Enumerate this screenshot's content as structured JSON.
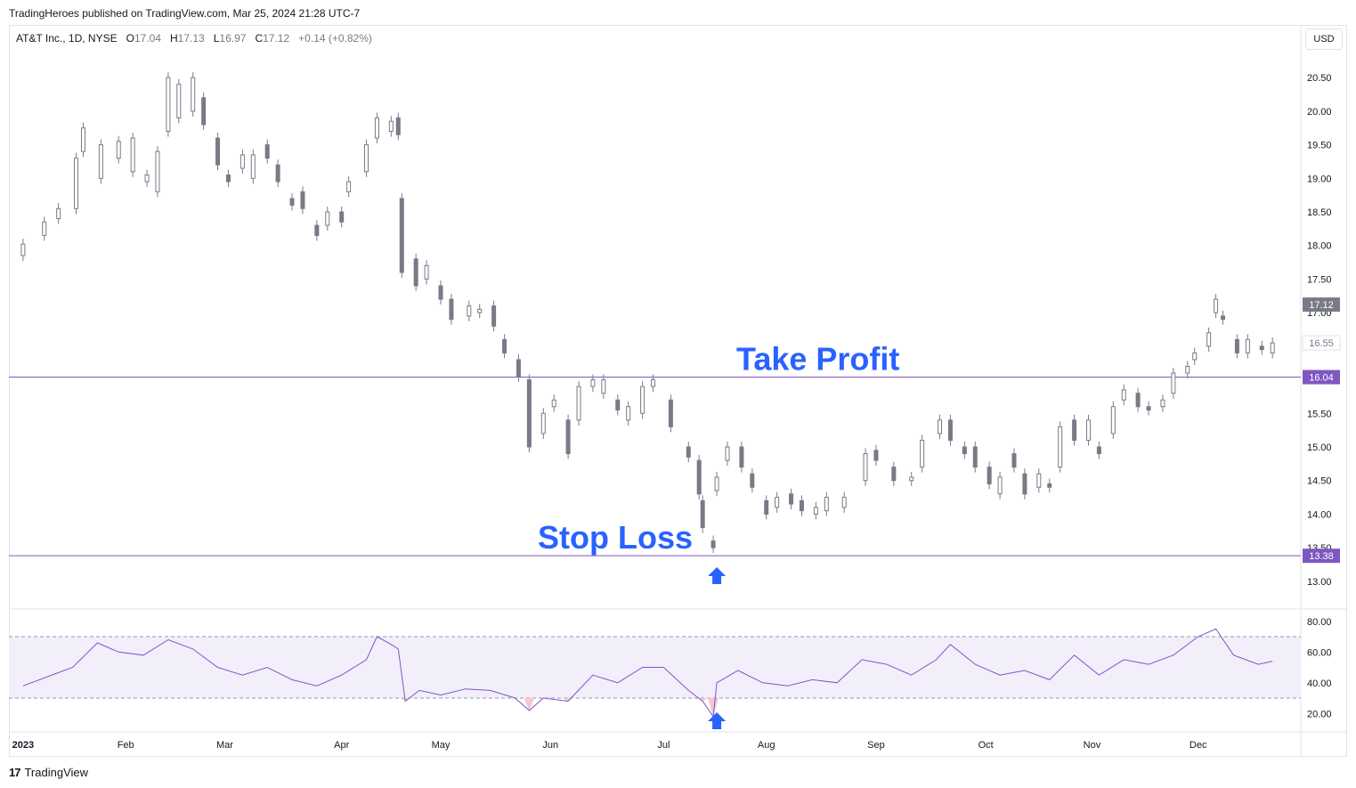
{
  "header": {
    "published": "TradingHeroes published on TradingView.com, Mar 25, 2024 21:28 UTC-7"
  },
  "legend": {
    "symbol": "AT&T Inc., 1D, NYSE",
    "o_label": "O",
    "o_value": "17.04",
    "h_label": "H",
    "h_value": "17.13",
    "l_label": "L",
    "l_value": "16.97",
    "c_label": "C",
    "c_value": "17.12",
    "change": "+0.14 (+0.82%)"
  },
  "currency_button": "USD",
  "footer": {
    "brand_mark": "17",
    "brand": "TradingView"
  },
  "colors": {
    "candle": "#787b86",
    "level_line": "#7e57c2",
    "annotation_text": "#2962ff",
    "arrow": "#2962ff",
    "rsi_line": "#7e57c2",
    "rsi_band": "#f2effb",
    "rsi_oversold_fill": "#f7c6d3",
    "price_label_bg": "#7e57c2",
    "last_price_bg": "#787b86"
  },
  "chart_data": [
    {
      "type": "candlestick",
      "title": "AT&T Inc., 1D, NYSE",
      "ylim": [
        12.6,
        20.9
      ],
      "yticks": [
        "20.50",
        "20.00",
        "19.50",
        "19.00",
        "18.50",
        "18.00",
        "17.50",
        "17.00",
        "16.50",
        "15.50",
        "15.00",
        "14.50",
        "14.00",
        "13.50",
        "13.00"
      ],
      "xticks": [
        "2023",
        "Feb",
        "Mar",
        "Apr",
        "May",
        "Jun",
        "Jul",
        "Aug",
        "Sep",
        "Oct",
        "Nov",
        "Dec"
      ],
      "tick_x": [
        "2023-01-03",
        "2023-02-01",
        "2023-03-01",
        "2023-04-03",
        "2023-05-01",
        "2023-06-01",
        "2023-07-03",
        "2023-08-01",
        "2023-09-01",
        "2023-10-02",
        "2023-11-01",
        "2023-12-01"
      ],
      "x_range": [
        "2022-12-30",
        "2023-12-30"
      ],
      "price_labels": [
        {
          "text": "17.12",
          "value": 17.12,
          "kind": "last"
        },
        {
          "text": "16.55",
          "value": 16.55,
          "kind": "faint"
        },
        {
          "text": "16.04",
          "value": 16.04,
          "kind": "level"
        },
        {
          "text": "13.38",
          "value": 13.38,
          "kind": "level"
        }
      ],
      "levels": [
        {
          "value": 16.04,
          "label": "Take Profit"
        },
        {
          "value": 13.38,
          "label": "Stop Loss"
        }
      ],
      "annotations": [
        {
          "text": "Take Profit",
          "near": 16.04
        },
        {
          "text": "Stop Loss",
          "near": 13.38
        }
      ],
      "entry_arrow": {
        "date": "2023-07-18",
        "value": 13.38
      },
      "series": [
        {
          "points": [
            [
              "2023-01-03",
              17.85,
              18.02
            ],
            [
              "2023-01-09",
              18.15,
              18.35
            ],
            [
              "2023-01-13",
              18.4,
              18.55
            ],
            [
              "2023-01-18",
              18.55,
              19.3
            ],
            [
              "2023-01-20",
              19.4,
              19.75
            ],
            [
              "2023-01-25",
              19.0,
              19.5
            ],
            [
              "2023-01-30",
              19.3,
              19.55
            ],
            [
              "2023-02-03",
              19.1,
              19.6
            ],
            [
              "2023-02-07",
              18.95,
              19.05
            ],
            [
              "2023-02-10",
              18.8,
              19.4
            ],
            [
              "2023-02-13",
              19.7,
              20.5
            ],
            [
              "2023-02-16",
              19.9,
              20.4
            ],
            [
              "2023-02-20",
              20.0,
              20.5
            ],
            [
              "2023-02-23",
              20.2,
              19.8
            ],
            [
              "2023-02-27",
              19.6,
              19.2
            ],
            [
              "2023-03-02",
              19.05,
              18.95
            ],
            [
              "2023-03-06",
              19.15,
              19.35
            ],
            [
              "2023-03-09",
              19.0,
              19.35
            ],
            [
              "2023-03-13",
              19.5,
              19.3
            ],
            [
              "2023-03-16",
              19.2,
              18.95
            ],
            [
              "2023-03-20",
              18.7,
              18.6
            ],
            [
              "2023-03-23",
              18.8,
              18.55
            ],
            [
              "2023-03-27",
              18.3,
              18.15
            ],
            [
              "2023-03-30",
              18.3,
              18.5
            ],
            [
              "2023-04-03",
              18.5,
              18.35
            ],
            [
              "2023-04-05",
              18.8,
              18.95
            ],
            [
              "2023-04-10",
              19.1,
              19.5
            ],
            [
              "2023-04-13",
              19.6,
              19.9
            ],
            [
              "2023-04-17",
              19.7,
              19.85
            ],
            [
              "2023-04-19",
              19.9,
              19.65
            ],
            [
              "2023-04-20",
              18.7,
              17.6
            ],
            [
              "2023-04-24",
              17.8,
              17.4
            ],
            [
              "2023-04-27",
              17.5,
              17.7
            ],
            [
              "2023-05-01",
              17.4,
              17.2
            ],
            [
              "2023-05-04",
              17.2,
              16.9
            ],
            [
              "2023-05-09",
              16.95,
              17.1
            ],
            [
              "2023-05-12",
              17.0,
              17.05
            ],
            [
              "2023-05-16",
              17.1,
              16.8
            ],
            [
              "2023-05-19",
              16.6,
              16.4
            ],
            [
              "2023-05-23",
              16.3,
              16.05
            ],
            [
              "2023-05-26",
              16.0,
              15.0
            ],
            [
              "2023-05-30",
              15.2,
              15.5
            ],
            [
              "2023-06-02",
              15.6,
              15.7
            ],
            [
              "2023-06-06",
              15.4,
              14.9
            ],
            [
              "2023-06-09",
              15.4,
              15.9
            ],
            [
              "2023-06-13",
              15.9,
              16.0
            ],
            [
              "2023-06-16",
              15.8,
              16.0
            ],
            [
              "2023-06-20",
              15.7,
              15.55
            ],
            [
              "2023-06-23",
              15.4,
              15.6
            ],
            [
              "2023-06-27",
              15.5,
              15.9
            ],
            [
              "2023-06-30",
              15.9,
              16.0
            ],
            [
              "2023-07-05",
              15.7,
              15.3
            ],
            [
              "2023-07-10",
              15.0,
              14.85
            ],
            [
              "2023-07-13",
              14.8,
              14.3
            ],
            [
              "2023-07-14",
              14.2,
              13.8
            ],
            [
              "2023-07-17",
              13.6,
              13.5
            ],
            [
              "2023-07-18",
              14.35,
              14.55
            ],
            [
              "2023-07-21",
              14.8,
              15.0
            ],
            [
              "2023-07-25",
              15.0,
              14.7
            ],
            [
              "2023-07-28",
              14.6,
              14.4
            ],
            [
              "2023-08-01",
              14.2,
              14.0
            ],
            [
              "2023-08-04",
              14.1,
              14.25
            ],
            [
              "2023-08-08",
              14.3,
              14.15
            ],
            [
              "2023-08-11",
              14.2,
              14.05
            ],
            [
              "2023-08-15",
              14.0,
              14.1
            ],
            [
              "2023-08-18",
              14.05,
              14.25
            ],
            [
              "2023-08-23",
              14.1,
              14.25
            ],
            [
              "2023-08-29",
              14.5,
              14.9
            ],
            [
              "2023-09-01",
              14.95,
              14.8
            ],
            [
              "2023-09-06",
              14.7,
              14.5
            ],
            [
              "2023-09-11",
              14.5,
              14.55
            ],
            [
              "2023-09-14",
              14.7,
              15.1
            ],
            [
              "2023-09-19",
              15.2,
              15.4
            ],
            [
              "2023-09-22",
              15.4,
              15.1
            ],
            [
              "2023-09-26",
              15.0,
              14.9
            ],
            [
              "2023-09-29",
              15.0,
              14.7
            ],
            [
              "2023-10-03",
              14.7,
              14.45
            ],
            [
              "2023-10-06",
              14.3,
              14.55
            ],
            [
              "2023-10-10",
              14.9,
              14.7
            ],
            [
              "2023-10-13",
              14.6,
              14.3
            ],
            [
              "2023-10-17",
              14.4,
              14.6
            ],
            [
              "2023-10-20",
              14.45,
              14.4
            ],
            [
              "2023-10-23",
              14.7,
              15.3
            ],
            [
              "2023-10-27",
              15.4,
              15.1
            ],
            [
              "2023-10-31",
              15.1,
              15.4
            ],
            [
              "2023-11-03",
              15.0,
              14.9
            ],
            [
              "2023-11-07",
              15.2,
              15.6
            ],
            [
              "2023-11-10",
              15.7,
              15.85
            ],
            [
              "2023-11-14",
              15.8,
              15.6
            ],
            [
              "2023-11-17",
              15.6,
              15.55
            ],
            [
              "2023-11-21",
              15.6,
              15.7
            ],
            [
              "2023-11-24",
              15.8,
              16.1
            ],
            [
              "2023-11-28",
              16.1,
              16.2
            ],
            [
              "2023-11-30",
              16.3,
              16.4
            ],
            [
              "2023-12-04",
              16.5,
              16.7
            ],
            [
              "2023-12-06",
              17.0,
              17.2
            ],
            [
              "2023-12-08",
              16.95,
              16.9
            ],
            [
              "2023-12-12",
              16.6,
              16.4
            ],
            [
              "2023-12-15",
              16.4,
              16.6
            ],
            [
              "2023-12-19",
              16.5,
              16.45
            ],
            [
              "2023-12-22",
              16.4,
              16.55
            ]
          ]
        }
      ]
    },
    {
      "type": "line",
      "title": "",
      "ylim": [
        8,
        88
      ],
      "yticks": [
        "80.00",
        "60.00",
        "40.00",
        "20.00"
      ],
      "bands": [
        30,
        70
      ],
      "entry_arrow": {
        "date": "2023-07-18",
        "value": 18
      },
      "series": [
        {
          "points": [
            [
              "2023-01-03",
              38
            ],
            [
              "2023-01-10",
              44
            ],
            [
              "2023-01-17",
              50
            ],
            [
              "2023-01-24",
              66
            ],
            [
              "2023-01-30",
              60
            ],
            [
              "2023-02-06",
              58
            ],
            [
              "2023-02-13",
              68
            ],
            [
              "2023-02-20",
              62
            ],
            [
              "2023-02-27",
              50
            ],
            [
              "2023-03-06",
              45
            ],
            [
              "2023-03-13",
              50
            ],
            [
              "2023-03-20",
              42
            ],
            [
              "2023-03-27",
              38
            ],
            [
              "2023-04-03",
              45
            ],
            [
              "2023-04-10",
              55
            ],
            [
              "2023-04-13",
              70
            ],
            [
              "2023-04-17",
              65
            ],
            [
              "2023-04-19",
              62
            ],
            [
              "2023-04-21",
              28
            ],
            [
              "2023-04-25",
              35
            ],
            [
              "2023-05-01",
              32
            ],
            [
              "2023-05-08",
              36
            ],
            [
              "2023-05-15",
              35
            ],
            [
              "2023-05-22",
              30
            ],
            [
              "2023-05-26",
              22
            ],
            [
              "2023-05-30",
              30
            ],
            [
              "2023-06-06",
              28
            ],
            [
              "2023-06-13",
              45
            ],
            [
              "2023-06-20",
              40
            ],
            [
              "2023-06-27",
              50
            ],
            [
              "2023-07-03",
              50
            ],
            [
              "2023-07-10",
              35
            ],
            [
              "2023-07-14",
              28
            ],
            [
              "2023-07-17",
              18
            ],
            [
              "2023-07-18",
              40
            ],
            [
              "2023-07-24",
              48
            ],
            [
              "2023-07-31",
              40
            ],
            [
              "2023-08-07",
              38
            ],
            [
              "2023-08-14",
              42
            ],
            [
              "2023-08-21",
              40
            ],
            [
              "2023-08-28",
              55
            ],
            [
              "2023-09-04",
              52
            ],
            [
              "2023-09-11",
              45
            ],
            [
              "2023-09-18",
              55
            ],
            [
              "2023-09-22",
              65
            ],
            [
              "2023-09-29",
              52
            ],
            [
              "2023-10-06",
              45
            ],
            [
              "2023-10-13",
              48
            ],
            [
              "2023-10-20",
              42
            ],
            [
              "2023-10-27",
              58
            ],
            [
              "2023-11-03",
              45
            ],
            [
              "2023-11-10",
              55
            ],
            [
              "2023-11-17",
              52
            ],
            [
              "2023-11-24",
              58
            ],
            [
              "2023-12-01",
              70
            ],
            [
              "2023-12-06",
              75
            ],
            [
              "2023-12-11",
              58
            ],
            [
              "2023-12-18",
              52
            ],
            [
              "2023-12-22",
              54
            ]
          ]
        }
      ]
    }
  ]
}
